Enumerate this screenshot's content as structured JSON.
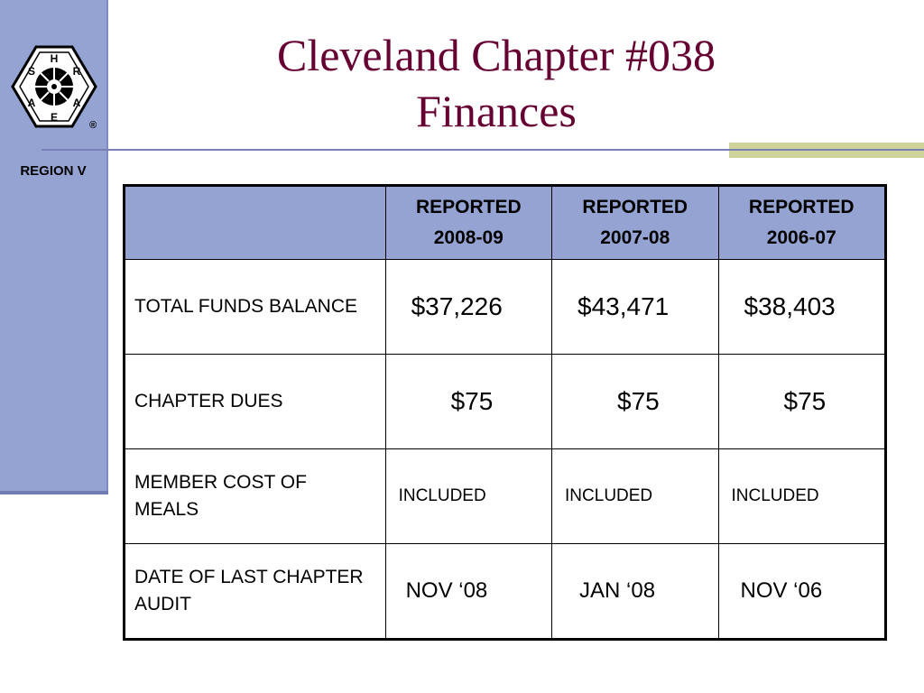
{
  "sidebar": {
    "logo_letters": [
      "H",
      "R",
      "A",
      "E",
      "A",
      "S"
    ],
    "logo_mark": "®",
    "region_label": "REGION V"
  },
  "title": {
    "line1": "Cleveland Chapter #038",
    "line2": "Finances"
  },
  "table": {
    "columns": [
      {
        "line1": "REPORTED",
        "line2": "2008-09"
      },
      {
        "line1": "REPORTED",
        "line2": "2007-08"
      },
      {
        "line1": "REPORTED",
        "line2": "2006-07"
      }
    ],
    "rows": [
      {
        "label": "TOTAL FUNDS BALANCE",
        "values": [
          "$37,226",
          "$43,471",
          "$38,403"
        ]
      },
      {
        "label": "CHAPTER DUES",
        "values": [
          "$75",
          "$75",
          "$75"
        ]
      },
      {
        "label": "MEMBER COST OF MEALS",
        "values": [
          "INCLUDED",
          "INCLUDED",
          "INCLUDED"
        ]
      },
      {
        "label": "DATE OF LAST CHAPTER AUDIT",
        "values": [
          "NOV ‘08",
          "JAN ‘08",
          "NOV ‘06"
        ]
      }
    ]
  },
  "colors": {
    "sidebar": "#95a3d2",
    "title": "#660033",
    "header_fill": "#95a3d2",
    "accent_bar": "#cfd39a"
  },
  "icons": {
    "logo": "ashrae-logo-icon"
  }
}
